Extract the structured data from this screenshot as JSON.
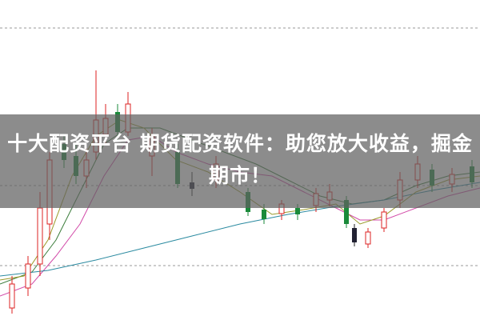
{
  "banner": {
    "title": "十大配资平台 期货配资软件：助您放大收益，掘金期市！"
  }
}
